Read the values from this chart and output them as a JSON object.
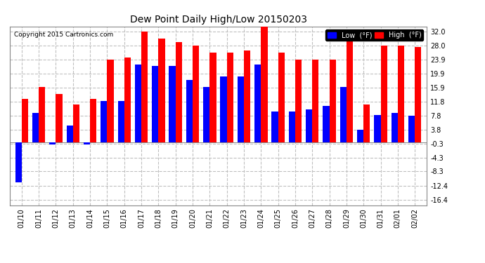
{
  "title": "Dew Point Daily High/Low 20150203",
  "copyright": "Copyright 2015 Cartronics.com",
  "dates": [
    "01/10",
    "01/11",
    "01/12",
    "01/13",
    "01/14",
    "01/15",
    "01/16",
    "01/17",
    "01/18",
    "01/19",
    "01/20",
    "01/21",
    "01/22",
    "01/23",
    "01/24",
    "01/25",
    "01/26",
    "01/27",
    "01/28",
    "01/29",
    "01/30",
    "01/31",
    "02/01",
    "02/02"
  ],
  "low": [
    -11.5,
    8.5,
    -0.5,
    5.0,
    -0.5,
    12.0,
    12.0,
    22.5,
    22.0,
    22.0,
    18.0,
    16.0,
    19.0,
    19.0,
    22.5,
    9.0,
    9.0,
    9.5,
    10.5,
    16.0,
    3.8,
    8.0,
    8.5,
    7.8
  ],
  "high": [
    12.5,
    16.0,
    14.0,
    11.0,
    12.5,
    24.0,
    24.5,
    32.0,
    30.0,
    29.0,
    28.0,
    26.0,
    26.0,
    26.5,
    33.5,
    26.0,
    24.0,
    24.0,
    24.0,
    30.0,
    11.0,
    28.0,
    28.0,
    27.5
  ],
  "low_color": "#0000ff",
  "high_color": "#ff0000",
  "bg_color": "#ffffff",
  "plot_bg": "#ffffff",
  "grid_color": "#c0c0c0",
  "yticks": [
    -16.4,
    -12.4,
    -8.3,
    -4.3,
    -0.3,
    3.8,
    7.8,
    11.8,
    15.9,
    19.9,
    23.9,
    28.0,
    32.0
  ],
  "ylim": [
    -18.0,
    33.5
  ],
  "bar_width": 0.38
}
